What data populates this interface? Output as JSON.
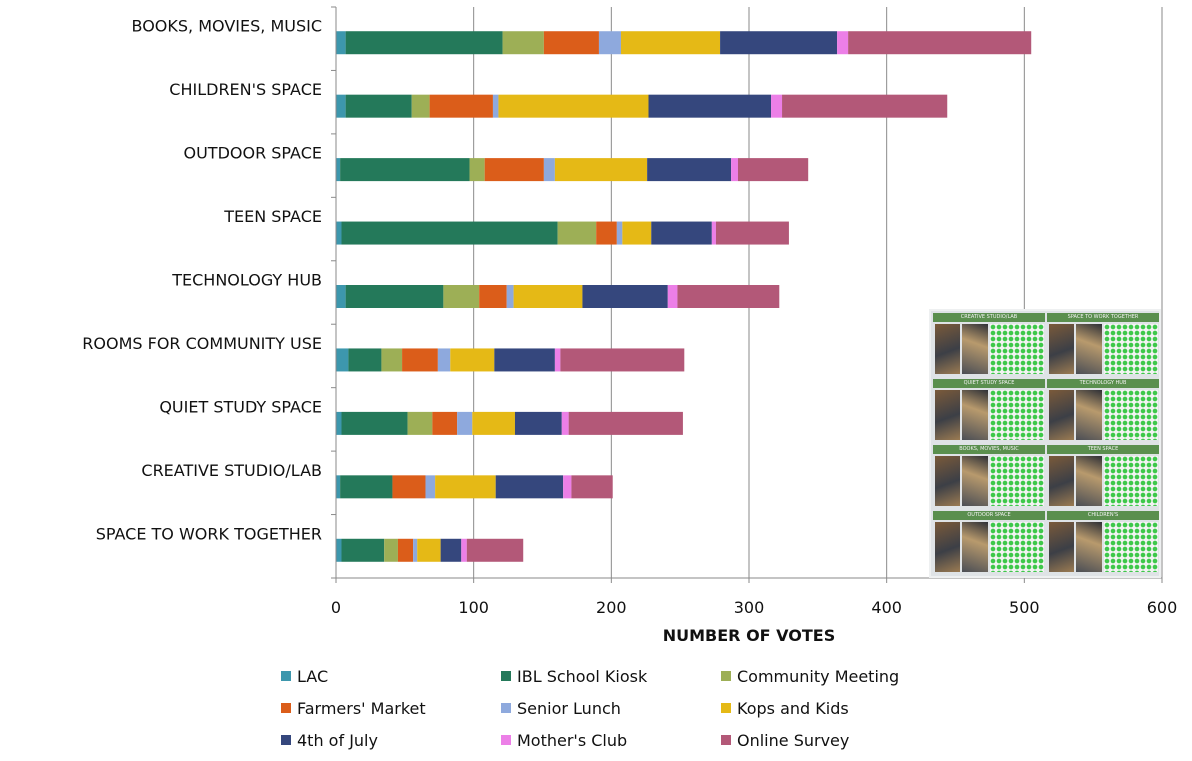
{
  "chart_data": {
    "type": "bar",
    "orientation": "horizontal",
    "stacked": true,
    "xlabel": "NUMBER OF VOTES",
    "xlim": [
      0,
      600
    ],
    "xticks": [
      "0",
      "100",
      "200",
      "300",
      "400",
      "500",
      "600"
    ],
    "grid": true,
    "legend_position": "bottom",
    "categories": [
      "BOOKS, MOVIES, MUSIC",
      "CHILDREN'S SPACE",
      "OUTDOOR SPACE",
      "TEEN SPACE",
      "TECHNOLOGY HUB",
      "ROOMS FOR COMMUNITY USE",
      "QUIET STUDY SPACE",
      "CREATIVE STUDIO/LAB",
      "SPACE TO WORK TOGETHER"
    ],
    "series": [
      {
        "name": "LAC",
        "color": "#3d97ad",
        "values": [
          7,
          7,
          3,
          4,
          7,
          9,
          4,
          3,
          4
        ]
      },
      {
        "name": "IBL School Kiosk",
        "color": "#24795a",
        "values": [
          114,
          48,
          94,
          157,
          71,
          24,
          48,
          38,
          31
        ]
      },
      {
        "name": "Community Meeting",
        "color": "#9daf56",
        "values": [
          30,
          13,
          11,
          28,
          26,
          15,
          18,
          0,
          10
        ]
      },
      {
        "name": "Farmers' Market",
        "color": "#db5d1a",
        "values": [
          40,
          46,
          43,
          15,
          20,
          26,
          18,
          24,
          11
        ]
      },
      {
        "name": "Senior Lunch",
        "color": "#8ea9dd",
        "values": [
          16,
          4,
          8,
          4,
          5,
          9,
          11,
          7,
          3
        ]
      },
      {
        "name": "Kops and Kids",
        "color": "#e5b916",
        "values": [
          72,
          109,
          67,
          21,
          50,
          32,
          31,
          44,
          17
        ]
      },
      {
        "name": "4th of July",
        "color": "#35477d",
        "values": [
          85,
          89,
          61,
          44,
          62,
          44,
          34,
          49,
          15
        ]
      },
      {
        "name": "Mother's Club",
        "color": "#ec7fe7",
        "values": [
          8,
          8,
          5,
          3,
          7,
          4,
          5,
          6,
          4
        ]
      },
      {
        "name": "Online Survey",
        "color": "#b35878",
        "values": [
          133,
          120,
          51,
          53,
          74,
          90,
          83,
          30,
          41
        ]
      }
    ]
  },
  "inset": {
    "panels": [
      "CREATIVE STUDIO/LAB",
      "SPACE TO WORK TOGETHER",
      "QUIET STUDY SPACE",
      "TECHNOLOGY HUB",
      "BOOKS, MOVIES, MUSIC",
      "TEEN SPACE",
      "OUTDOOR SPACE",
      "CHILDREN'S"
    ]
  }
}
